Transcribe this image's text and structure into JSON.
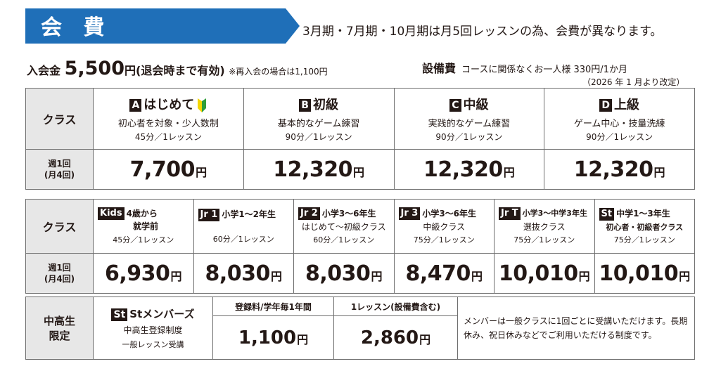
{
  "header": {
    "title": "会 費",
    "note": "3月期・7月期・10月期は月5回レッスンの為、会費が異なります。"
  },
  "entry_fee": {
    "label": "入会金",
    "amount": "5,500",
    "unit": "円",
    "condition": "(退会時まで有効)",
    "rejoin_note": "※再入会の場合は1,100円"
  },
  "facility_fee": {
    "label": "設備費",
    "description": "コースに関係なくお一人様 330円/1か月",
    "revised": "（2026 年 1 月より改定）"
  },
  "yen": "円",
  "table1": {
    "class_header": "クラス",
    "weekly_header": "週1回\n(月4回)",
    "classes": [
      {
        "badge": "A",
        "name": "はじめて",
        "desc": "初心者を対象・少人数制",
        "duration": "45分／1レッスン",
        "price": "7,700",
        "color": "#1f6fb8"
      },
      {
        "badge": "B",
        "name": "初級",
        "desc": "基本的なゲーム練習",
        "duration": "90分／1レッスン",
        "price": "12,320"
      },
      {
        "badge": "C",
        "name": "中級",
        "desc": "実践的なゲーム練習",
        "duration": "90分／1レッスン",
        "price": "12,320"
      },
      {
        "badge": "D",
        "name": "上級",
        "desc": "ゲーム中心・技量洗練",
        "duration": "90分／1レッスン",
        "price": "12,320"
      }
    ]
  },
  "table2": {
    "class_header": "クラス",
    "weekly_header": "週1回\n(月4回)",
    "classes": [
      {
        "badge": "Kids",
        "name": "4歳から",
        "name2": "就学前",
        "sub": "",
        "duration": "45分／1レッスン",
        "price": "6,930"
      },
      {
        "badge": "Jr 1",
        "name": "小学1～2年生",
        "sub": "",
        "duration": "60分／1レッスン",
        "price": "8,030"
      },
      {
        "badge": "Jr 2",
        "name": "小学3～6年生",
        "sub": "はじめて～初級クラス",
        "duration": "60分／1レッスン",
        "price": "8,030"
      },
      {
        "badge": "Jr 3",
        "name": "小学3～6年生",
        "sub": "中級クラス",
        "duration": "75分／1レッスン",
        "price": "8,470"
      },
      {
        "badge": "Jr T",
        "name": "小学3～中学3年生",
        "sub": "選抜クラス",
        "duration": "75分／1レッスン",
        "price": "10,010"
      },
      {
        "badge": "St",
        "name": "中学1～3年生",
        "sub": "初心者・初級者クラス",
        "duration": "75分／1レッスン",
        "price": "10,010"
      }
    ]
  },
  "table3": {
    "header": "中高生\n限定",
    "badge": "St",
    "name": "Stメンバーズ",
    "line1": "中高生登録制度",
    "line2": "一般レッスン受講",
    "reg_label": "登録料/学年毎1年間",
    "reg_price": "1,100",
    "lesson_label": "1レッスン(設備費含む)",
    "lesson_price": "2,860",
    "note": "メンバーは一般クラスに1回ごとに受講いただけます。長期休み、祝日休みなどでご利用いただける制度です。"
  }
}
